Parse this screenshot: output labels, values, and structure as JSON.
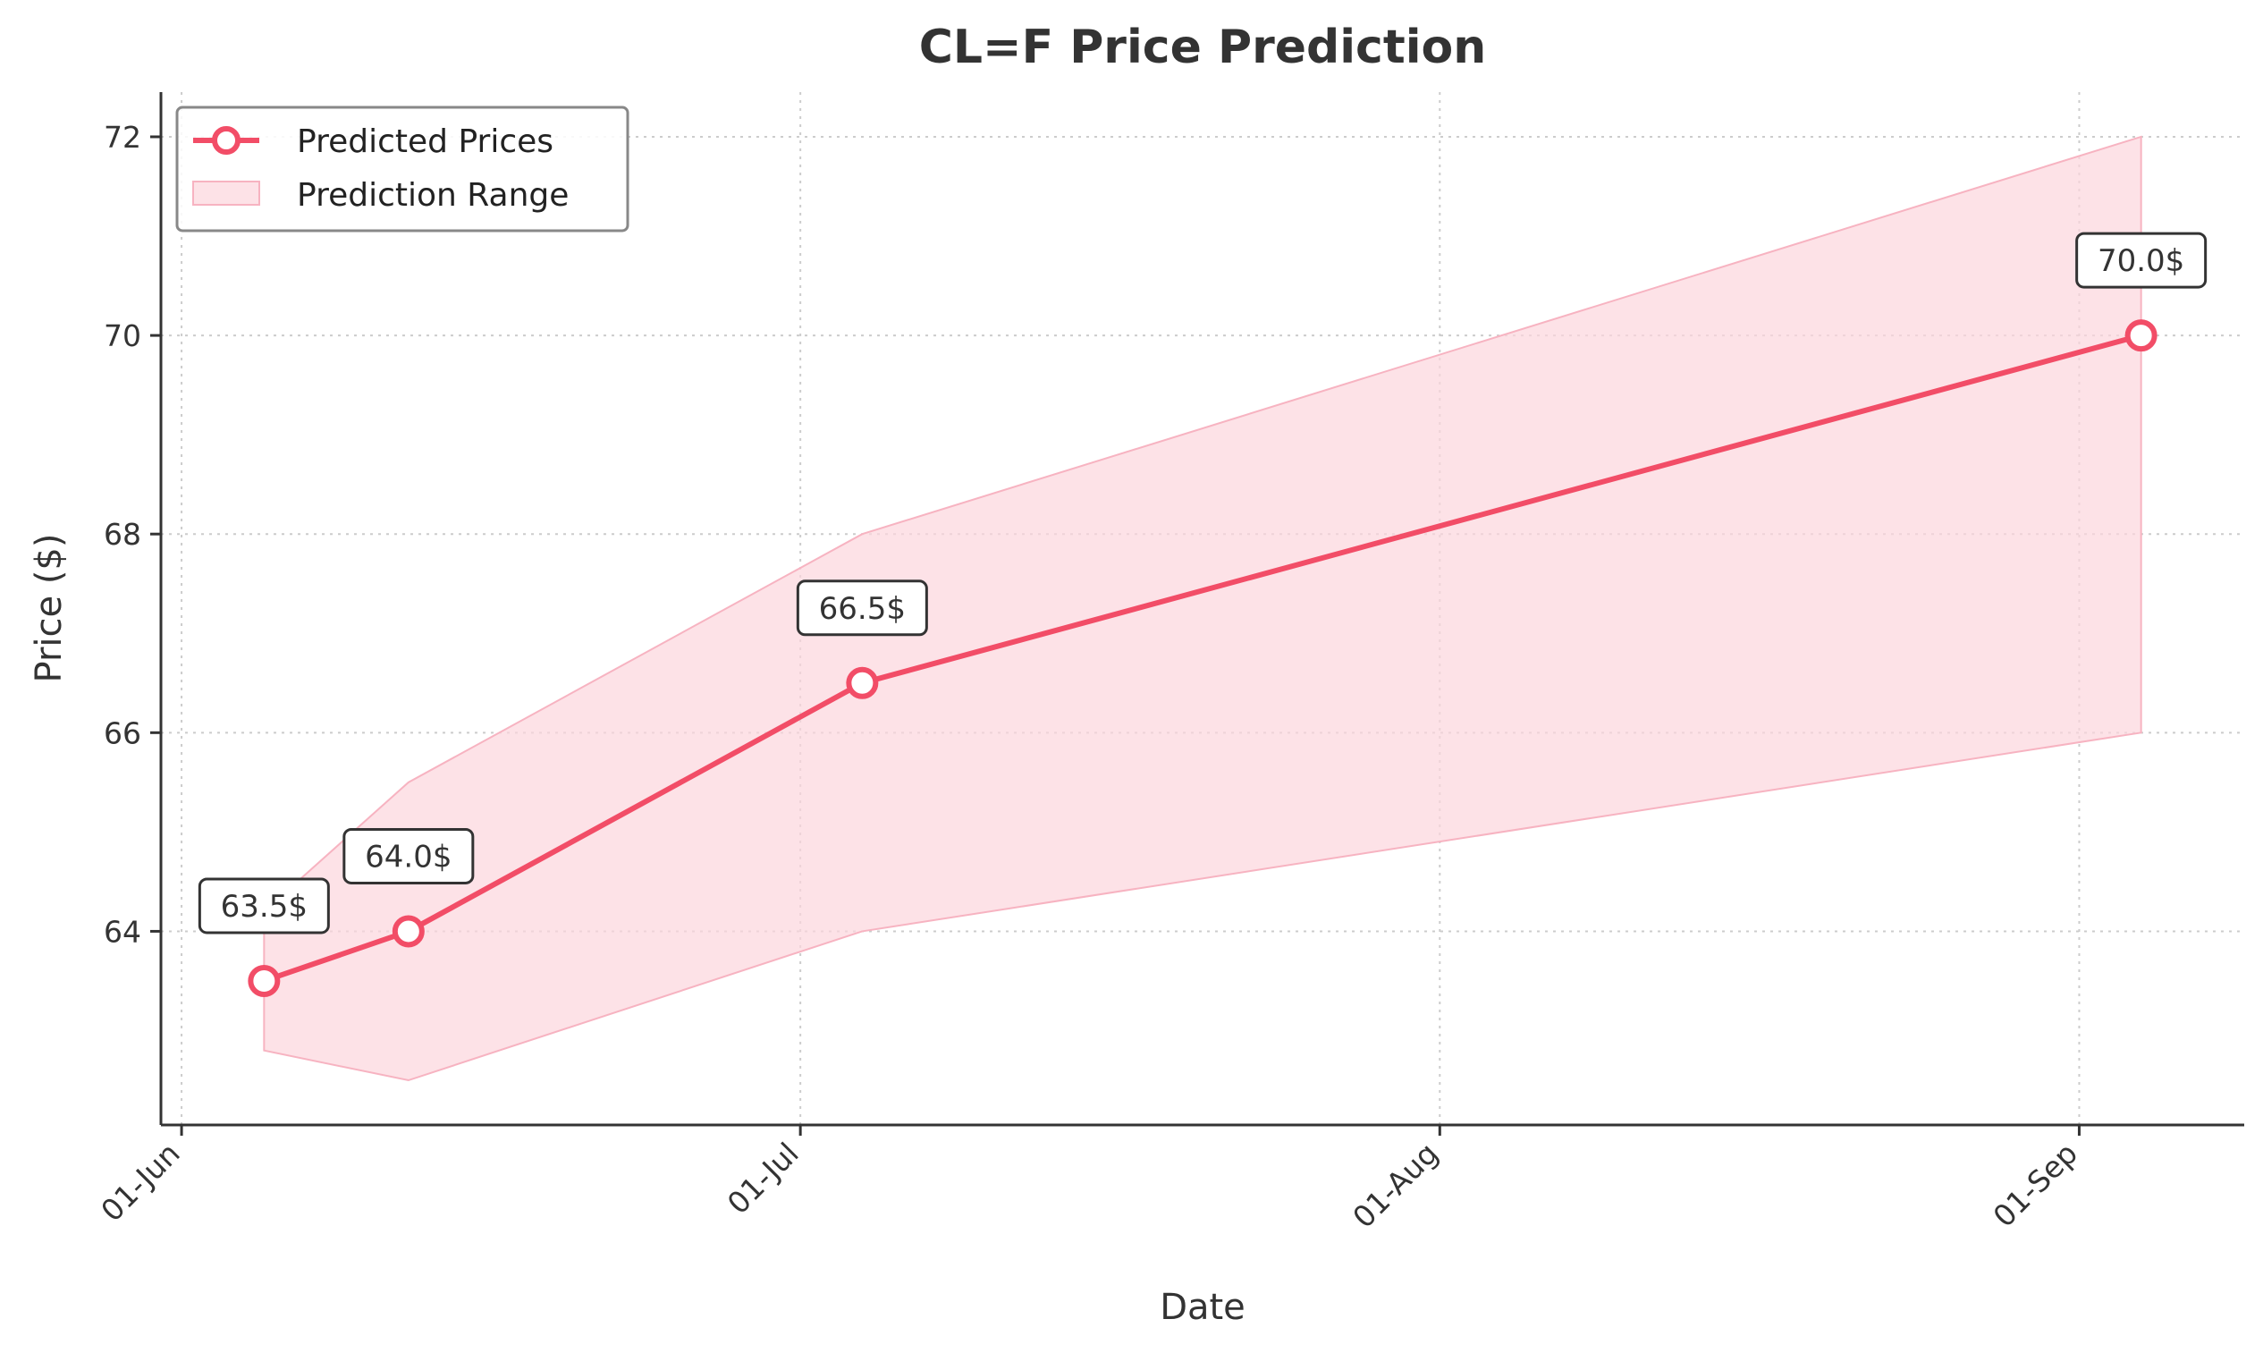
{
  "chart_data": {
    "type": "line",
    "title": "CL=F Price Prediction",
    "xlabel": "Date",
    "ylabel": "Price ($)",
    "x_axis": {
      "type": "date",
      "range": [
        "2025-05-31",
        "2025-09-09"
      ],
      "ticks": [
        {
          "date": "2025-06-01",
          "label": "01-Jun"
        },
        {
          "date": "2025-07-01",
          "label": "01-Jul"
        },
        {
          "date": "2025-08-01",
          "label": "01-Aug"
        },
        {
          "date": "2025-09-01",
          "label": "01-Sep"
        }
      ]
    },
    "y_axis": {
      "range": [
        62.05,
        72.45
      ],
      "ticks": [
        64,
        66,
        68,
        70,
        72
      ]
    },
    "grid": true,
    "legend_position": "top-left",
    "series": [
      {
        "name": "Predicted Prices",
        "color": "#f24d67",
        "points": [
          {
            "x": "2025-06-05",
            "y": 63.5,
            "label": "63.5$"
          },
          {
            "x": "2025-06-12",
            "y": 64.0,
            "label": "64.0$"
          },
          {
            "x": "2025-07-04",
            "y": 66.5,
            "label": "66.5$"
          },
          {
            "x": "2025-09-04",
            "y": 70.0,
            "label": "70.0$"
          }
        ]
      }
    ],
    "range_band": {
      "name": "Prediction Range",
      "color": "#fcd5dd",
      "points": [
        {
          "x": "2025-06-05",
          "low": 62.8,
          "high": 64.2
        },
        {
          "x": "2025-06-12",
          "low": 62.5,
          "high": 65.5
        },
        {
          "x": "2025-07-04",
          "low": 64.0,
          "high": 68.0
        },
        {
          "x": "2025-09-04",
          "low": 66.0,
          "high": 72.0
        }
      ]
    }
  }
}
